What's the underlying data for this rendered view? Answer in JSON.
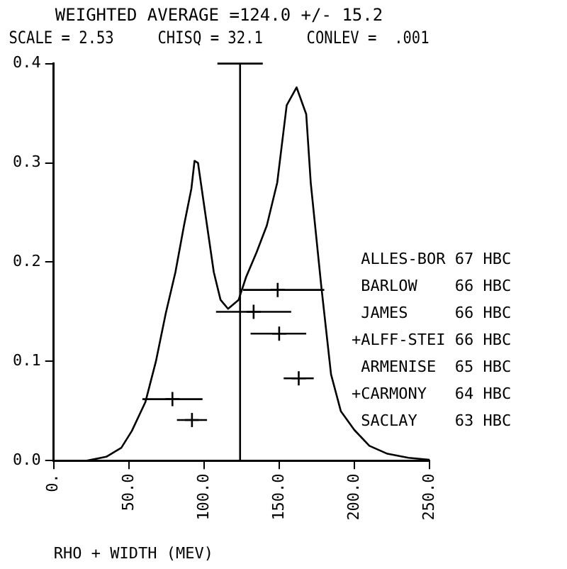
{
  "chart_data": {
    "type": "line",
    "title": "WEIGHTED AVERAGE =124.0 +/- 15.2",
    "subtitle": "SCALE = 2.53     CHISQ = 32.1     CONLEV =  .001",
    "xlabel": "RHO + WIDTH (MEV)",
    "xlim": [
      0,
      250
    ],
    "xticks": [
      {
        "value": 0,
        "label": "0."
      },
      {
        "value": 50,
        "label": "50.0"
      },
      {
        "value": 100,
        "label": "100.0"
      },
      {
        "value": 150,
        "label": "150.0"
      },
      {
        "value": 200,
        "label": "200.0"
      },
      {
        "value": 250,
        "label": "250.0"
      }
    ],
    "ylim": [
      0,
      0.4
    ],
    "yticks": [
      {
        "value": 0,
        "label": "0.0"
      },
      {
        "value": 0.1,
        "label": "0.1"
      },
      {
        "value": 0.2,
        "label": "0.2"
      },
      {
        "value": 0.3,
        "label": "0.3"
      },
      {
        "value": 0.4,
        "label": "0.4"
      }
    ],
    "grid": false,
    "legend": false,
    "series": [
      {
        "type": "line",
        "color": "#000000",
        "marker": "none",
        "x": [
          22,
          35,
          45,
          52,
          61,
          68,
          74.5,
          81,
          86.7,
          91.6,
          93.7,
          96,
          99.8,
          106.5,
          111,
          116,
          123,
          128,
          135,
          141.8,
          148.7,
          155,
          161.6,
          168,
          171,
          178,
          184.5,
          191,
          200,
          210,
          222,
          236,
          250
        ],
        "values": [
          0,
          0.004,
          0.013,
          0.03,
          0.059,
          0.1,
          0.148,
          0.19,
          0.237,
          0.274,
          0.302,
          0.3,
          0.26,
          0.19,
          0.162,
          0.153,
          0.162,
          0.185,
          0.21,
          0.237,
          0.28,
          0.358,
          0.376,
          0.349,
          0.28,
          0.176,
          0.087,
          0.05,
          0.031,
          0.015,
          0.007,
          0.003,
          0.001
        ]
      },
      {
        "type": "scatter",
        "color": "#000000",
        "marker": "cross",
        "x": [
          149,
          133,
          150,
          163,
          79,
          92
        ],
        "values": [
          0.172,
          0.15,
          0.128,
          0.083,
          0.062,
          0.041
        ],
        "xerrors": [
          [
            126,
            180
          ],
          [
            108,
            158
          ],
          [
            131,
            168
          ],
          [
            153,
            173
          ],
          [
            59,
            99
          ],
          [
            82,
            102
          ]
        ]
      }
    ],
    "ref_lines": [
      {
        "axis": "x",
        "value": 124
      }
    ],
    "annotations": [
      " ALLES-BOR 67 HBC",
      " BARLOW    66 HBC",
      " JAMES     66 HBC",
      "+ALFF-STEI 66 HBC",
      " ARMENISE  65 HBC",
      "+CARMONY   64 HBC",
      " SACLAY    63 HBC"
    ]
  }
}
